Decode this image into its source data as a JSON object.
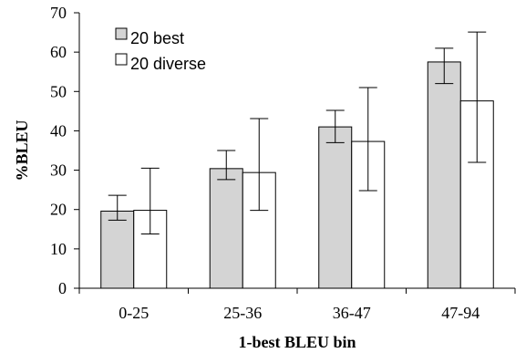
{
  "chart_data": {
    "type": "bar",
    "title": "",
    "xlabel": "1-best BLEU bin",
    "ylabel": "%BLEU",
    "categories": [
      "0-25",
      "25-36",
      "36-47",
      "47-94"
    ],
    "ylim": [
      0,
      70
    ],
    "yticks": [
      0,
      10,
      20,
      30,
      40,
      50,
      60,
      70
    ],
    "grid": false,
    "legend_position": "top-left",
    "series": [
      {
        "name": "20 best",
        "color": "#d4d4d4",
        "values": [
          19.6,
          30.4,
          41.0,
          57.5
        ],
        "error_low": [
          17.3,
          27.6,
          37.0,
          52.0
        ],
        "error_high": [
          23.6,
          35.0,
          45.2,
          61.0
        ]
      },
      {
        "name": "20 diverse",
        "color": "#ffffff",
        "values": [
          19.8,
          29.4,
          37.3,
          47.6
        ],
        "error_low": [
          13.8,
          19.8,
          24.8,
          32.0
        ],
        "error_high": [
          30.5,
          43.1,
          51.0,
          65.1
        ]
      }
    ]
  }
}
